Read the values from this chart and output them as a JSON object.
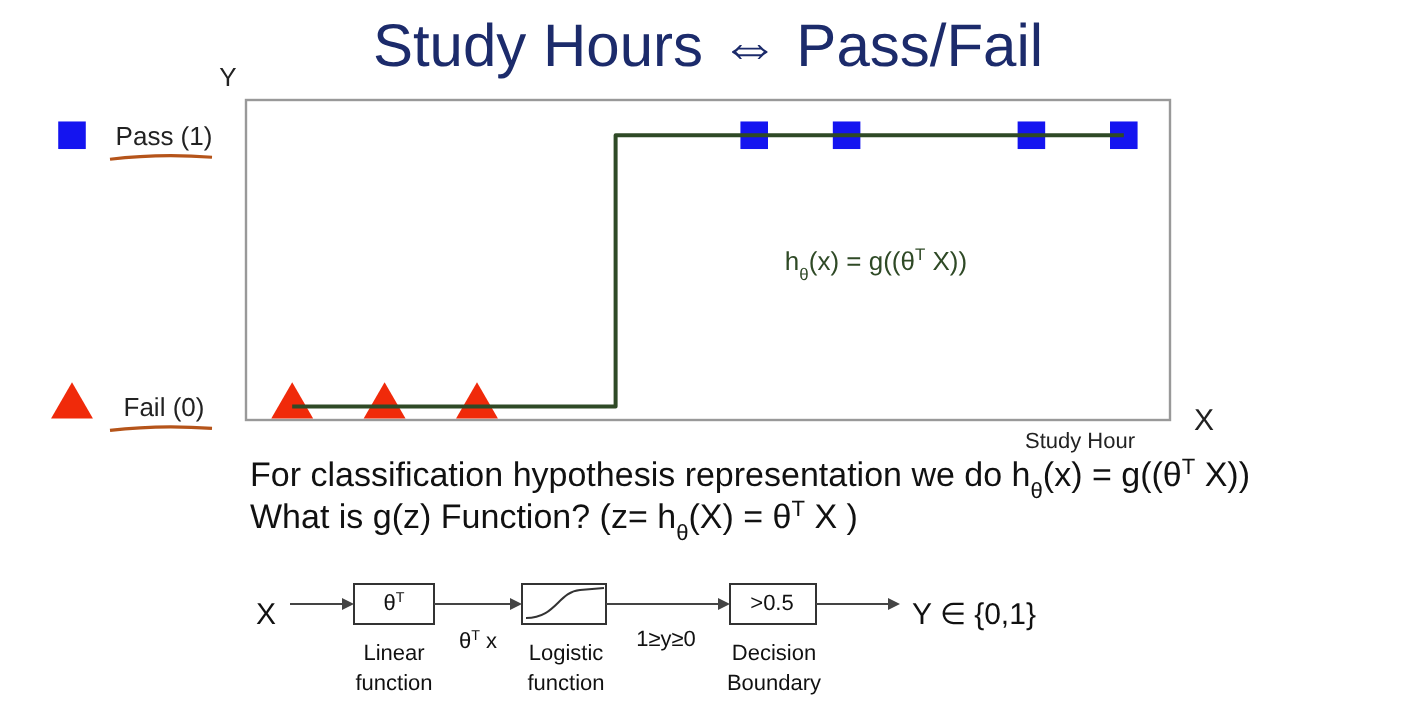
{
  "chart_data": {
    "type": "scatter",
    "title": "Study Hours ⇔ Pass/Fail",
    "xlabel": "Study Hour",
    "ylabel": "Y",
    "ylim": [
      -0.05,
      1.13
    ],
    "yticks": [
      {
        "value": 0,
        "label": "Fail (0)"
      },
      {
        "value": 1,
        "label": "Pass (1)"
      }
    ],
    "tick_labels": "y",
    "categories": [
      null,
      null,
      null,
      null,
      null,
      null,
      null,
      null,
      null,
      null
    ],
    "series": [
      {
        "color": "#1414f0",
        "marker": "square",
        "values": [
          null,
          null,
          null,
          null,
          null,
          1,
          1,
          null,
          1,
          1
        ]
      },
      {
        "color": "#f02a0a",
        "marker": "triangle",
        "values": [
          0,
          0,
          0,
          null,
          null,
          null,
          null,
          null,
          null,
          null
        ]
      },
      {
        "type": "step",
        "color": "#2f4a26",
        "marker": "none",
        "values": [
          0,
          0,
          0,
          0,
          1,
          1,
          1,
          1,
          1,
          1
        ]
      }
    ],
    "annotations": [
      "X",
      "h$_{θ}$(x) = g((θ$^{T}$ X))",
      "For classification hypothesis representation we do h$_{θ}$(x) = g((θ$^{T}$ X))",
      "What is g(z) Function? (z= h$_{θ}$(X) = θ$^{T}$ X )",
      "X",
      "θ$^{T}$",
      "θ$^{T}$ x",
      "1≥y≥0",
      ">0.5",
      "Y ∈ {0,1}",
      "Linear function",
      "Logistic function",
      "Decision Boundary"
    ]
  }
}
